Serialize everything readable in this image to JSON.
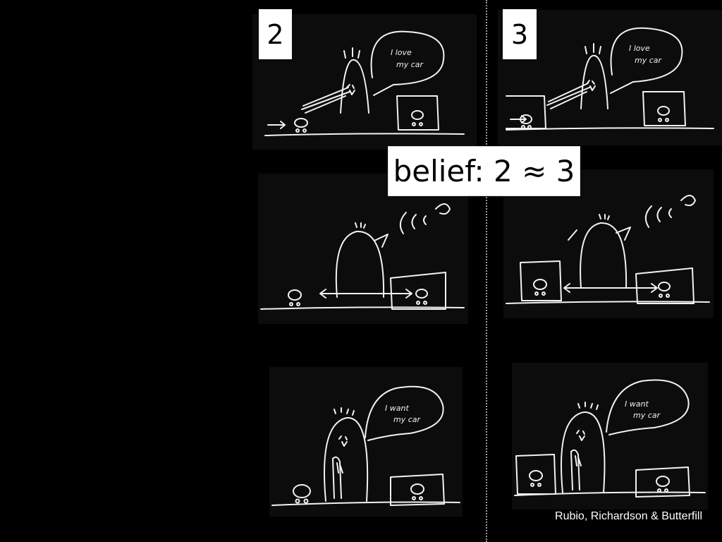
{
  "panels": [
    {
      "number": "2",
      "speech": [
        "I love",
        "my car"
      ]
    },
    {
      "number": "3",
      "speech": [
        "I love",
        "my car"
      ]
    },
    {
      "speech": []
    },
    {
      "speech": []
    },
    {
      "speech": [
        "I want",
        "my car"
      ]
    },
    {
      "speech": [
        "I want",
        "my car"
      ]
    }
  ],
  "claim": "belief: 2 ≈ 3",
  "credit": "Rubio, Richardson & Butterfill"
}
